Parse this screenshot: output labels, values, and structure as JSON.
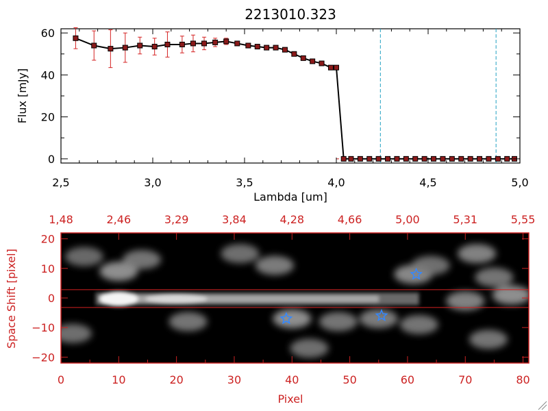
{
  "colors": {
    "axis_black": "#000000",
    "axis_red": "#cc2222",
    "series": "#000000",
    "marker_fill": "#8b1a1a",
    "errorbar": "#d42020",
    "vline": "#20a0c0",
    "aperture": "#d42020",
    "star": "#3388ff"
  },
  "chart_data": [
    {
      "type": "line",
      "title": "2213010.323",
      "xlabel": "Lambda [um]",
      "ylabel": "Flux [mJy]",
      "xlim": [
        2.5,
        5.0
      ],
      "ylim": [
        -2,
        62
      ],
      "x_ticks": [
        "2.5",
        "3.0",
        "3.5",
        "4.0",
        "4.5",
        "5.0"
      ],
      "y_ticks": [
        "0",
        "20",
        "40",
        "60"
      ],
      "grid": false,
      "series": [
        {
          "x": [
            2.58,
            2.68,
            2.77,
            2.85,
            2.93,
            3.01,
            3.08,
            3.16,
            3.22,
            3.28,
            3.34,
            3.4,
            3.46,
            3.52,
            3.57,
            3.62,
            3.67,
            3.72,
            3.77,
            3.82,
            3.87,
            3.92,
            3.97,
            4.0,
            4.04,
            4.08,
            4.13,
            4.18,
            4.23,
            4.28,
            4.33,
            4.38,
            4.43,
            4.48,
            4.53,
            4.58,
            4.63,
            4.68,
            4.73,
            4.78,
            4.83,
            4.88,
            4.93,
            4.97
          ],
          "y": [
            57.5,
            54,
            52.5,
            53,
            54,
            53.5,
            54.5,
            54.5,
            55,
            55,
            55.5,
            56,
            55,
            54,
            53.5,
            53,
            53,
            52,
            50,
            48,
            46.5,
            45.5,
            43.5,
            43.5,
            0,
            0,
            0,
            0,
            0,
            0,
            0,
            0,
            0,
            0,
            0,
            0,
            0,
            0,
            0,
            0,
            0,
            0,
            0,
            0
          ],
          "yerr": [
            5,
            7,
            9,
            7,
            4,
            4,
            6,
            4,
            4,
            3,
            2,
            1.5,
            1,
            1,
            1,
            1,
            1,
            1,
            1,
            1,
            1,
            1,
            1,
            1,
            0.5,
            0.5,
            0.5,
            0.5,
            0.5,
            0.5,
            0.5,
            0.5,
            0.5,
            0.5,
            0.5,
            0.5,
            0.5,
            0.5,
            0.5,
            0.5,
            0.5,
            0.5,
            0.5,
            0.5
          ]
        }
      ],
      "vlines": [
        4.24,
        4.87
      ],
      "hline": 0
    },
    {
      "type": "heatmap",
      "xlabel": "Pixel",
      "ylabel": "Space Shift [pixel]",
      "xlim": [
        0,
        81
      ],
      "ylim": [
        -22,
        22
      ],
      "x_ticks": [
        "0",
        "10",
        "20",
        "30",
        "40",
        "50",
        "60",
        "70",
        "80"
      ],
      "y_ticks": [
        "-20",
        "-10",
        "0",
        "10",
        "20"
      ],
      "top_axis_ticks": [
        "1.48",
        "2.46",
        "3.29",
        "3.84",
        "4.28",
        "4.66",
        "5.00",
        "5.31",
        "5.55"
      ],
      "aperture_lines": [
        2.8,
        -3.2
      ],
      "stars": [
        {
          "x": 39,
          "y": -7
        },
        {
          "x": 55.5,
          "y": -6
        },
        {
          "x": 61.5,
          "y": 8
        }
      ],
      "trace": {
        "peak_x": 10,
        "y": -0.3
      },
      "blobs": [
        {
          "x": 10,
          "y": 9,
          "i": 0.55
        },
        {
          "x": 14,
          "y": 13,
          "i": 0.35
        },
        {
          "x": 22,
          "y": -8,
          "i": 0.35
        },
        {
          "x": 31,
          "y": 15,
          "i": 0.3
        },
        {
          "x": 37,
          "y": 11,
          "i": 0.4
        },
        {
          "x": 40,
          "y": -7,
          "i": 0.55
        },
        {
          "x": 43,
          "y": -17,
          "i": 0.3
        },
        {
          "x": 48,
          "y": -8,
          "i": 0.35
        },
        {
          "x": 55,
          "y": -7,
          "i": 0.4
        },
        {
          "x": 61,
          "y": 8,
          "i": 0.5
        },
        {
          "x": 62,
          "y": -9,
          "i": 0.35
        },
        {
          "x": 64,
          "y": 11,
          "i": 0.3
        },
        {
          "x": 70,
          "y": -1,
          "i": 0.45
        },
        {
          "x": 72,
          "y": 15,
          "i": 0.45
        },
        {
          "x": 75,
          "y": 7,
          "i": 0.35
        },
        {
          "x": 78,
          "y": 1,
          "i": 0.55
        },
        {
          "x": 74,
          "y": -14,
          "i": 0.35
        },
        {
          "x": 2,
          "y": -12,
          "i": 0.3
        },
        {
          "x": 4,
          "y": 14,
          "i": 0.25
        }
      ]
    }
  ]
}
